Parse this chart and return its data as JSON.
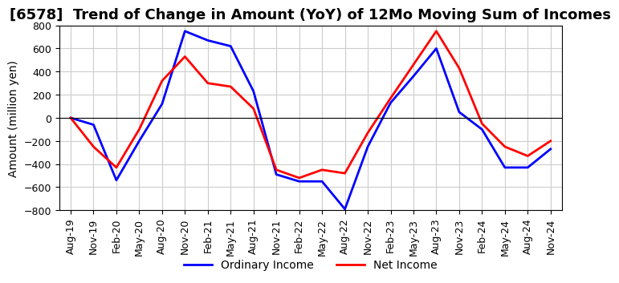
{
  "title": "[6578]  Trend of Change in Amount (YoY) of 12Mo Moving Sum of Incomes",
  "ylabel": "Amount (million yen)",
  "ylim": [
    -800,
    800
  ],
  "yticks": [
    -800,
    -600,
    -400,
    -200,
    0,
    200,
    400,
    600,
    800
  ],
  "x_labels": [
    "Aug-19",
    "Nov-19",
    "Feb-20",
    "May-20",
    "Aug-20",
    "Nov-20",
    "Feb-21",
    "May-21",
    "Aug-21",
    "Nov-21",
    "Feb-22",
    "May-22",
    "Aug-22",
    "Nov-22",
    "Feb-23",
    "May-23",
    "Aug-23",
    "Nov-23",
    "Feb-24",
    "May-24",
    "Aug-24",
    "Nov-24"
  ],
  "ordinary_income": [
    0,
    -60,
    -540,
    -200,
    120,
    750,
    670,
    620,
    230,
    -490,
    -550,
    -550,
    -790,
    -250,
    130,
    360,
    600,
    50,
    -100,
    -430,
    -430,
    -270
  ],
  "net_income": [
    0,
    -250,
    -430,
    -100,
    320,
    530,
    300,
    270,
    80,
    -450,
    -520,
    -450,
    -480,
    -130,
    170,
    460,
    750,
    430,
    -50,
    -250,
    -330,
    -200
  ],
  "ordinary_color": "#0000ff",
  "net_color": "#ff0000",
  "line_width": 2.0,
  "background_color": "#ffffff",
  "grid_color": "#cccccc",
  "title_fontsize": 13,
  "label_fontsize": 10,
  "tick_fontsize": 9
}
